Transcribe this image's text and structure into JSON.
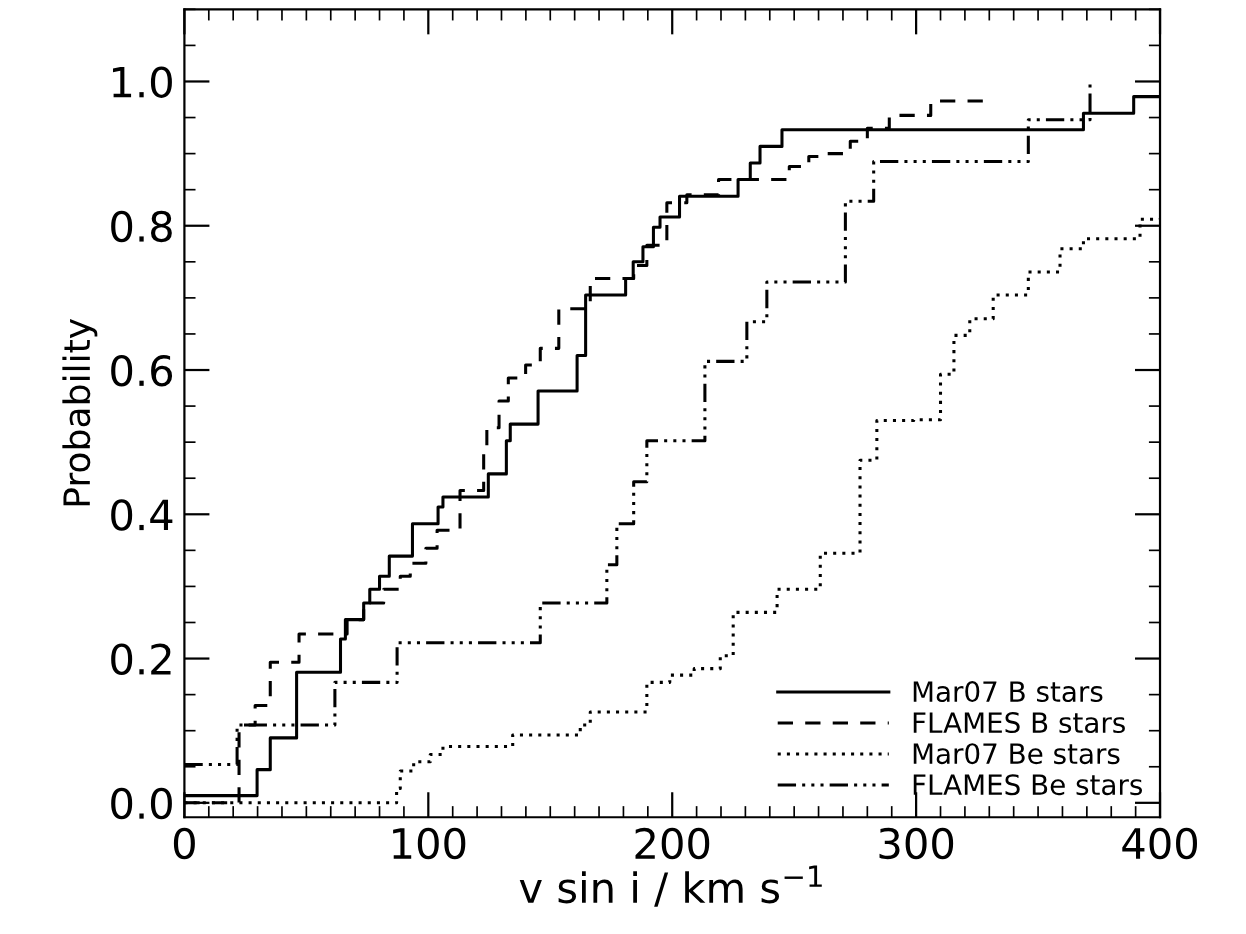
{
  "chart_data": {
    "type": "step",
    "xlabel": "v sin i / km s$^{−1}$",
    "ylabel": "Probability",
    "xlim": [
      0,
      400
    ],
    "ylim": [
      -0.02,
      1.1
    ],
    "xticks": [
      0,
      100,
      200,
      300,
      400
    ],
    "yticks": [
      {
        "value": 0.0,
        "label": "0.0"
      },
      {
        "value": 0.2,
        "label": "0.2"
      },
      {
        "value": 0.4,
        "label": "0.4"
      },
      {
        "value": 0.6,
        "label": "0.6"
      },
      {
        "value": 0.8,
        "label": "0.8"
      },
      {
        "value": 1.0,
        "label": "1.0"
      }
    ],
    "grid": false,
    "legend": "bottom right",
    "marker": "none",
    "series": [
      {
        "name": "Mar07 B stars",
        "color": "#000000",
        "line_style": "solid",
        "x": [
          0,
          29.8,
          35.2,
          46,
          64,
          66,
          73.5,
          76,
          80,
          84,
          93.5,
          104,
          106,
          124.6,
          132,
          133.6,
          145,
          161,
          164.5,
          180.9,
          184,
          188,
          192.3,
          195,
          203,
          227,
          232,
          236,
          245,
          368.6,
          389.2,
          400
        ],
        "values": [
          0.01,
          0.046,
          0.09,
          0.181,
          0.227,
          0.254,
          0.277,
          0.296,
          0.314,
          0.342,
          0.387,
          0.41,
          0.424,
          0.456,
          0.502,
          0.525,
          0.571,
          0.62,
          0.704,
          0.727,
          0.75,
          0.771,
          0.798,
          0.812,
          0.841,
          0.864,
          0.887,
          0.91,
          0.933,
          0.956,
          0.979,
          0.979
        ]
      },
      {
        "name": "FLAMES B stars",
        "color": "#000000",
        "line_style": "dashed",
        "x": [
          0,
          22.4,
          29,
          35.2,
          47,
          66.7,
          73.5,
          81.7,
          88.5,
          92.6,
          99,
          103.6,
          113,
          122.7,
          124,
          129,
          132.8,
          139.9,
          145.9,
          153.5,
          166.4,
          184.2,
          189.6,
          197.8,
          206,
          219,
          248,
          256,
          260,
          273,
          280,
          289,
          306,
          327.7,
          329
        ],
        "values": [
          0.0,
          0.108,
          0.135,
          0.195,
          0.234,
          0.254,
          0.277,
          0.296,
          0.314,
          0.332,
          0.353,
          0.378,
          0.433,
          0.488,
          0.52,
          0.557,
          0.589,
          0.607,
          0.63,
          0.685,
          0.727,
          0.745,
          0.773,
          0.832,
          0.843,
          0.864,
          0.882,
          0.896,
          0.9,
          0.917,
          0.935,
          0.953,
          0.973,
          0.98,
          0.98
        ]
      },
      {
        "name": "Mar07 Be stars",
        "color": "#000000",
        "line_style": "dotted",
        "x": [
          0,
          87,
          88.5,
          94,
          100.8,
          106,
          134.6,
          162.3,
          166.4,
          189.6,
          199,
          209,
          219.7,
          225,
          243,
          260.7,
          277,
          283.9,
          299,
          310,
          315.5,
          322,
          331.6,
          346,
          359,
          368.6,
          391.8,
          400
        ],
        "values": [
          0.0,
          0.02,
          0.044,
          0.057,
          0.067,
          0.078,
          0.094,
          0.108,
          0.126,
          0.167,
          0.177,
          0.186,
          0.204,
          0.264,
          0.296,
          0.346,
          0.475,
          0.53,
          0.531,
          0.594,
          0.648,
          0.671,
          0.704,
          0.736,
          0.768,
          0.782,
          0.809,
          0.81
        ]
      },
      {
        "name": "FLAMES Be stars",
        "color": "#000000",
        "line_style": "dashdot",
        "x": [
          0,
          21.6,
          61.7,
          87.2,
          145.9,
          173.2,
          177.3,
          184.2,
          189.6,
          213.4,
          230.6,
          238.8,
          271,
          282.6,
          346,
          371.3
        ],
        "values": [
          0.053,
          0.108,
          0.167,
          0.222,
          0.277,
          0.33,
          0.387,
          0.445,
          0.502,
          0.612,
          0.667,
          0.722,
          0.834,
          0.889,
          0.947,
          1.0
        ]
      }
    ]
  }
}
